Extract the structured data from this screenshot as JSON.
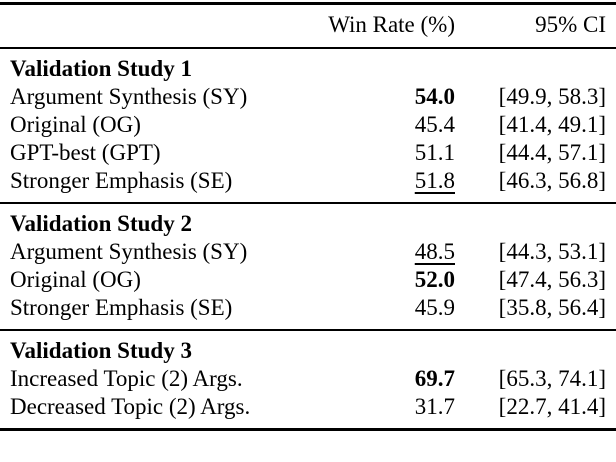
{
  "page": {
    "background_color": "#ffffff",
    "text_color": "#000000",
    "rule_color": "#000000"
  },
  "table": {
    "header": {
      "label_col": "",
      "win_rate_col": "Win Rate (%)",
      "ci_col": "95% CI"
    },
    "sections": [
      {
        "title": "Validation Study 1",
        "rows": [
          {
            "label": "Argument Synthesis (SY)",
            "win_rate": "54.0",
            "ci": "[49.9, 58.3]",
            "emphasis": "bold"
          },
          {
            "label": "Original (OG)",
            "win_rate": "45.4",
            "ci": "[41.4, 49.1]",
            "emphasis": "none"
          },
          {
            "label": "GPT-best (GPT)",
            "win_rate": "51.1",
            "ci": "[44.4, 57.1]",
            "emphasis": "none"
          },
          {
            "label": "Stronger Emphasis (SE)",
            "win_rate": "51.8",
            "ci": "[46.3, 56.8]",
            "emphasis": "underline"
          }
        ]
      },
      {
        "title": "Validation Study 2",
        "rows": [
          {
            "label": "Argument Synthesis (SY)",
            "win_rate": "48.5",
            "ci": "[44.3, 53.1]",
            "emphasis": "underline"
          },
          {
            "label": "Original (OG)",
            "win_rate": "52.0",
            "ci": "[47.4, 56.3]",
            "emphasis": "bold"
          },
          {
            "label": "Stronger Emphasis (SE)",
            "win_rate": "45.9",
            "ci": "[35.8, 56.4]",
            "emphasis": "none"
          }
        ]
      },
      {
        "title": "Validation Study 3",
        "rows": [
          {
            "label": "Increased Topic (2) Args.",
            "win_rate": "69.7",
            "ci": "[65.3, 74.1]",
            "emphasis": "bold"
          },
          {
            "label": "Decreased Topic (2) Args.",
            "win_rate": "31.7",
            "ci": "[22.7, 41.4]",
            "emphasis": "none"
          }
        ]
      }
    ]
  }
}
